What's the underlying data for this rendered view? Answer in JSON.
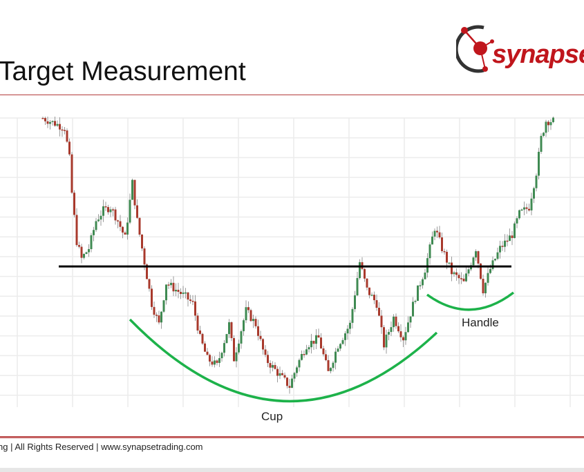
{
  "slide": {
    "title": "Target Measurement",
    "logo_text": "synapset",
    "footer": "ng | All Rights Reserved | www.synapsetrading.com"
  },
  "colors": {
    "accent": "#b23a3a",
    "logo_red": "#c0161c",
    "up": "#3f8a52",
    "down": "#a8392c",
    "pattern_curve": "#1db24a",
    "resistance": "#000000",
    "grid": "#ececec"
  },
  "chart_data": {
    "type": "candlestick",
    "grid": true,
    "axes_labels_shown": false,
    "price_range": [
      0,
      100
    ],
    "price_path": [
      [
        0,
        100
      ],
      [
        9,
        96.6
      ],
      [
        11,
        85.9
      ],
      [
        12,
        73.9
      ],
      [
        14,
        57.1
      ],
      [
        16,
        51.1
      ],
      [
        19,
        54.7
      ],
      [
        22,
        64.3
      ],
      [
        25,
        67.9
      ],
      [
        28,
        69.1
      ],
      [
        31,
        64.3
      ],
      [
        34,
        58.3
      ],
      [
        37,
        77.5
      ],
      [
        39,
        64.3
      ],
      [
        42,
        49.9
      ],
      [
        45,
        35.5
      ],
      [
        48,
        28.3
      ],
      [
        51,
        42.7
      ],
      [
        55,
        40.3
      ],
      [
        59,
        37.9
      ],
      [
        62,
        35.5
      ],
      [
        65,
        23.5
      ],
      [
        68,
        16.3
      ],
      [
        72,
        13.9
      ],
      [
        77,
        28.3
      ],
      [
        79,
        16.3
      ],
      [
        84,
        33.1
      ],
      [
        88,
        28.3
      ],
      [
        92,
        16.3
      ],
      [
        97,
        11.5
      ],
      [
        102,
        6.7
      ],
      [
        105,
        13.9
      ],
      [
        109,
        21.1
      ],
      [
        114,
        23.5
      ],
      [
        118,
        11.5
      ],
      [
        122,
        21.1
      ],
      [
        127,
        28.3
      ],
      [
        131,
        49.9
      ],
      [
        134,
        40.3
      ],
      [
        138,
        35.5
      ],
      [
        141,
        21.1
      ],
      [
        145,
        30.7
      ],
      [
        149,
        23.5
      ],
      [
        154,
        37.9
      ],
      [
        158,
        47.5
      ],
      [
        162,
        61.9
      ],
      [
        165,
        54.7
      ],
      [
        169,
        46.3
      ],
      [
        174,
        42.7
      ],
      [
        179,
        54.7
      ],
      [
        182,
        40.3
      ],
      [
        185,
        47.5
      ],
      [
        189,
        54.7
      ],
      [
        194,
        59.5
      ],
      [
        197,
        66.7
      ],
      [
        201,
        69.1
      ],
      [
        204,
        81.1
      ],
      [
        206,
        93.0
      ],
      [
        208,
        99
      ],
      [
        211,
        99
      ]
    ],
    "annotations": {
      "resistance_level": 48.4,
      "cup_label": "Cup",
      "handle_label": "Handle"
    }
  }
}
